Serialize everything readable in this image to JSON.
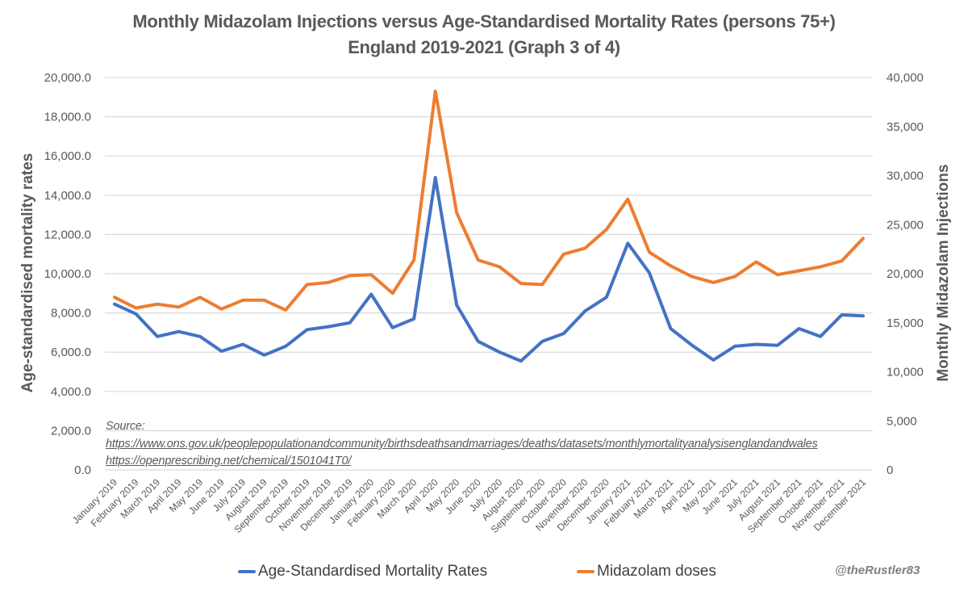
{
  "title_line1": "Monthly Midazolam Injections versus Age-Standardised Mortality Rates (persons 75+)",
  "title_line2": "England 2019-2021 (Graph 3 of 4)",
  "source": {
    "label": "Source:",
    "links": [
      "https://www.ons.gov.uk/peoplepopulationandcommunity/birthsdeathsandmarriages/deaths/datasets/monthlymortalityanalysisenglandandwales",
      "https://openprescribing.net/chemical/1501041T0/"
    ]
  },
  "credit": "@theRustler83",
  "colors": {
    "mortality": "#4472C4",
    "doses": "#ED7D31",
    "grid": "#D9D9D9",
    "text": "#595959"
  },
  "chart_data": {
    "type": "line",
    "title": "Monthly Midazolam Injections versus Age-Standardised Mortality Rates (persons 75+) England 2019-2021 (Graph 3 of 4)",
    "xlabel": "",
    "ylabel": "Age-standardised mortality rates",
    "y2label": "Monthly Midazolam Injections",
    "ylim": [
      0,
      20000
    ],
    "y2lim": [
      0,
      40000
    ],
    "yticks": [
      "0.0",
      "2,000.0",
      "4,000.0",
      "6,000.0",
      "8,000.0",
      "10,000.0",
      "12,000.0",
      "14,000.0",
      "16,000.0",
      "18,000.0",
      "20,000.0"
    ],
    "y2ticks": [
      "0",
      "5,000",
      "10,000",
      "15,000",
      "20,000",
      "25,000",
      "30,000",
      "35,000",
      "40,000"
    ],
    "grid": true,
    "legend": "bottom",
    "categories": [
      "January 2019",
      "February 2019",
      "March 2019",
      "April 2019",
      "May 2019",
      "June 2019",
      "July 2019",
      "August 2019",
      "September 2019",
      "October 2019",
      "November 2019",
      "December 2019",
      "January 2020",
      "February 2020",
      "March 2020",
      "April 2020",
      "May 2020",
      "June 2020",
      "July 2020",
      "August 2020",
      "September 2020",
      "October 2020",
      "November 2020",
      "December 2020",
      "January 2021",
      "February 2021",
      "March 2021",
      "April 2021",
      "May 2021",
      "June 2021",
      "July 2021",
      "August 2021",
      "September 2021",
      "October 2021",
      "November 2021",
      "December 2021"
    ],
    "series": [
      {
        "name": "Age-Standardised Mortality Rates",
        "axis": "left",
        "values": [
          8450,
          7950,
          6800,
          7050,
          6800,
          6050,
          6400,
          5850,
          6300,
          7150,
          7300,
          7500,
          8950,
          7250,
          7700,
          14900,
          8400,
          6550,
          6000,
          5550,
          6550,
          6950,
          8100,
          8800,
          11550,
          10050,
          7200,
          6350,
          5600,
          6300,
          6400,
          6350,
          7200,
          6800,
          7900,
          7850
        ]
      },
      {
        "name": "Midazolam doses",
        "axis": "right",
        "values": [
          17600,
          16500,
          16900,
          16600,
          17600,
          16400,
          17300,
          17300,
          16300,
          18900,
          19100,
          19800,
          19900,
          18000,
          21400,
          38600,
          26200,
          21400,
          20700,
          19000,
          18900,
          22000,
          22600,
          24500,
          27600,
          22200,
          20800,
          19700,
          19100,
          19700,
          21200,
          19900,
          20300,
          20700,
          21300,
          23600
        ]
      }
    ]
  }
}
